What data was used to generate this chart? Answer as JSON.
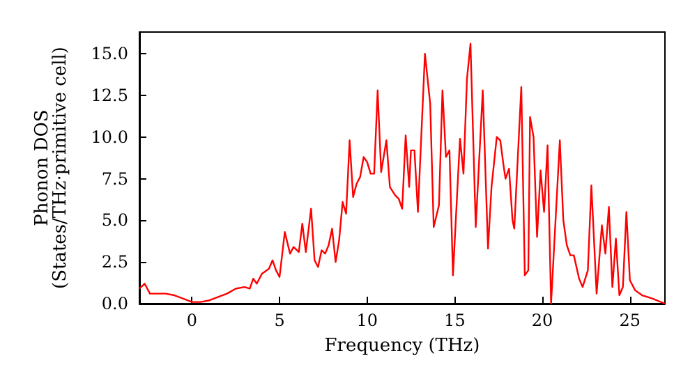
{
  "chart_data": {
    "type": "line",
    "xlabel": "Frequency (THz)",
    "ylabel": "Phonon DOS\n(States/THz·primitive cell)",
    "xlim": [
      -3,
      27
    ],
    "ylim": [
      0,
      16.3
    ],
    "xticks": [
      0,
      5,
      10,
      15,
      20,
      25
    ],
    "yticks": [
      {
        "value": 0,
        "label": "0.0"
      },
      {
        "value": 2.5,
        "label": "2.5"
      },
      {
        "value": 5,
        "label": "5.0"
      },
      {
        "value": 7.5,
        "label": "7.5"
      },
      {
        "value": 10,
        "label": "10.0"
      },
      {
        "value": 12.5,
        "label": "12.5"
      },
      {
        "value": 15,
        "label": "15.0"
      }
    ],
    "grid": false,
    "marker": "none",
    "line_style": "solid",
    "series": [
      {
        "color": "#ff0000",
        "x": [
          -3,
          -2.7,
          -2.4,
          -1.5,
          -1,
          0,
          0.5,
          1,
          2,
          2.5,
          3,
          3.3,
          3.5,
          3.7,
          4,
          4.4,
          4.6,
          4.8,
          5,
          5.3,
          5.6,
          5.8,
          6.1,
          6.3,
          6.5,
          6.8,
          7,
          7.2,
          7.4,
          7.6,
          7.8,
          8,
          8.2,
          8.4,
          8.6,
          8.8,
          9,
          9.2,
          9.4,
          9.6,
          9.8,
          10,
          10.2,
          10.4,
          10.6,
          10.8,
          11.1,
          11.3,
          11.6,
          11.8,
          12,
          12.2,
          12.4,
          12.5,
          12.7,
          12.9,
          13.3,
          13.6,
          13.8,
          14.1,
          14.3,
          14.5,
          14.7,
          14.9,
          15.3,
          15.5,
          15.7,
          15.9,
          16.2,
          16.6,
          16.9,
          17.1,
          17.4,
          17.6,
          17.8,
          17.9,
          18.1,
          18.3,
          18.4,
          18.8,
          19,
          19.2,
          19.3,
          19.5,
          19.7,
          19.9,
          20.1,
          20.3,
          20.5,
          21,
          21.2,
          21.4,
          21.6,
          21.8,
          22.1,
          22.3,
          22.6,
          22.8,
          23.1,
          23.4,
          23.6,
          23.8,
          24,
          24.2,
          24.4,
          24.6,
          24.8,
          25,
          25.3,
          25.7,
          26,
          26.3,
          27
        ],
        "values": [
          0.9,
          1.2,
          0.6,
          0.6,
          0.5,
          0.1,
          0.1,
          0.2,
          0.6,
          0.9,
          1,
          0.9,
          1.5,
          1.2,
          1.8,
          2.1,
          2.6,
          2,
          1.6,
          4.3,
          3,
          3.4,
          3.1,
          4.8,
          3.1,
          5.7,
          2.6,
          2.2,
          3.2,
          3,
          3.5,
          4.5,
          2.5,
          3.8,
          6.1,
          5.4,
          9.8,
          6.4,
          7.2,
          7.6,
          8.8,
          8.5,
          7.8,
          7.8,
          12.8,
          7.9,
          9.8,
          7,
          6.5,
          6.3,
          5.7,
          10.1,
          7,
          9.2,
          9.2,
          5.5,
          15,
          12,
          4.6,
          5.9,
          12.8,
          8.8,
          9.2,
          1.7,
          9.9,
          7.8,
          13.5,
          15.6,
          4.6,
          12.8,
          3.3,
          7,
          10,
          9.8,
          8.2,
          7.5,
          8.1,
          5,
          4.5,
          13,
          1.7,
          2,
          11.2,
          10,
          4,
          8,
          5.5,
          9.5,
          0,
          9.8,
          5,
          3.5,
          2.9,
          2.9,
          1.5,
          1,
          2,
          7.1,
          0.6,
          4.7,
          3,
          5.8,
          1,
          3.9,
          0.5,
          1,
          5.5,
          1.4,
          0.8,
          0.5,
          0.4,
          0.3,
          0
        ]
      }
    ]
  }
}
